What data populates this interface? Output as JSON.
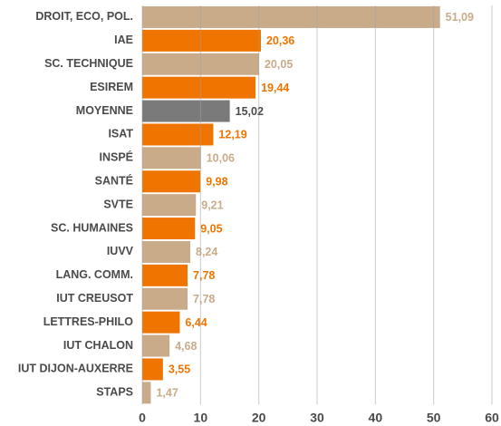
{
  "chart_data": {
    "type": "barh",
    "categories": [
      "DROIT, ECO, POL.",
      "IAE",
      "SC. TECHNIQUE",
      "ESIREM",
      "MOYENNE",
      "ISAT",
      "INSPÉ",
      "SANTÉ",
      "SVTE",
      "SC. HUMAINES",
      "IUVV",
      "LANG. COMM.",
      "IUT CREUSOT",
      "LETTRES-PHILO",
      "IUT CHALON",
      "IUT DIJON-AUXERRE",
      "STAPS"
    ],
    "values": [
      51.09,
      20.36,
      20.05,
      19.44,
      15.02,
      12.19,
      10.06,
      9.98,
      9.21,
      9.05,
      8.24,
      7.78,
      7.78,
      6.44,
      4.68,
      3.55,
      1.47
    ],
    "value_labels": [
      "51,09",
      "20,36",
      "20,05",
      "19,44",
      "15,02",
      "12,19",
      "10,06",
      "9,98",
      "9,21",
      "9,05",
      "8,24",
      "7,78",
      "7,78",
      "6,44",
      "4,68",
      "3,55",
      "1,47"
    ],
    "colors": [
      "#c9ab8a",
      "#f07400",
      "#c9ab8a",
      "#f07400",
      "#7a7a7a",
      "#f07400",
      "#c9ab8a",
      "#f07400",
      "#c9ab8a",
      "#f07400",
      "#c9ab8a",
      "#f07400",
      "#c9ab8a",
      "#f07400",
      "#c9ab8a",
      "#f07400",
      "#c9ab8a"
    ],
    "xlim": [
      0,
      60
    ],
    "xticks": [
      0,
      10,
      20,
      30,
      40,
      50,
      60
    ],
    "grid": true
  }
}
